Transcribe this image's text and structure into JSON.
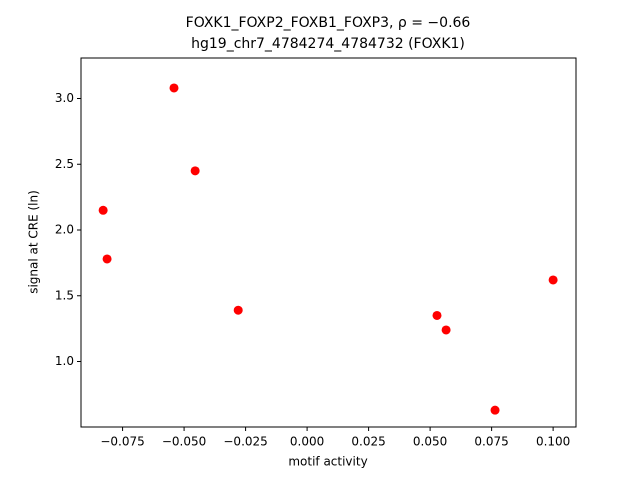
{
  "chart_data": {
    "type": "scatter",
    "title": "FOXK1_FOXP2_FOXB1_FOXP3, ρ = −0.66",
    "subtitle": "hg19_chr7_4784274_4784732 (FOXK1)",
    "x_label": "motif activity",
    "y_label": "signal at CRE (ln)",
    "color": "#ff0000",
    "x": [
      -0.0541,
      -0.0455,
      -0.0829,
      -0.0813,
      -0.028,
      0.0528,
      0.0565,
      0.0764,
      0.1
    ],
    "values": [
      3.08,
      2.45,
      2.15,
      1.78,
      1.39,
      1.35,
      1.24,
      0.63,
      1.62
    ],
    "xlim": [
      -0.0919,
      0.1093
    ],
    "ylim": [
      0.502,
      3.308
    ],
    "xticks": [
      {
        "value": -0.075,
        "label": "−0.075"
      },
      {
        "value": -0.05,
        "label": "−0.050"
      },
      {
        "value": -0.025,
        "label": "−0.025"
      },
      {
        "value": 0,
        "label": "0.000"
      },
      {
        "value": 0.025,
        "label": "0.025"
      },
      {
        "value": 0.05,
        "label": "0.050"
      },
      {
        "value": 0.075,
        "label": "0.075"
      },
      {
        "value": 0.1,
        "label": "0.100"
      }
    ],
    "yticks": [
      {
        "value": 1,
        "label": "1.0"
      },
      {
        "value": 1.5,
        "label": "1.5"
      },
      {
        "value": 2,
        "label": "2.0"
      },
      {
        "value": 2.5,
        "label": "2.5"
      },
      {
        "value": 3,
        "label": "3.0"
      }
    ]
  }
}
